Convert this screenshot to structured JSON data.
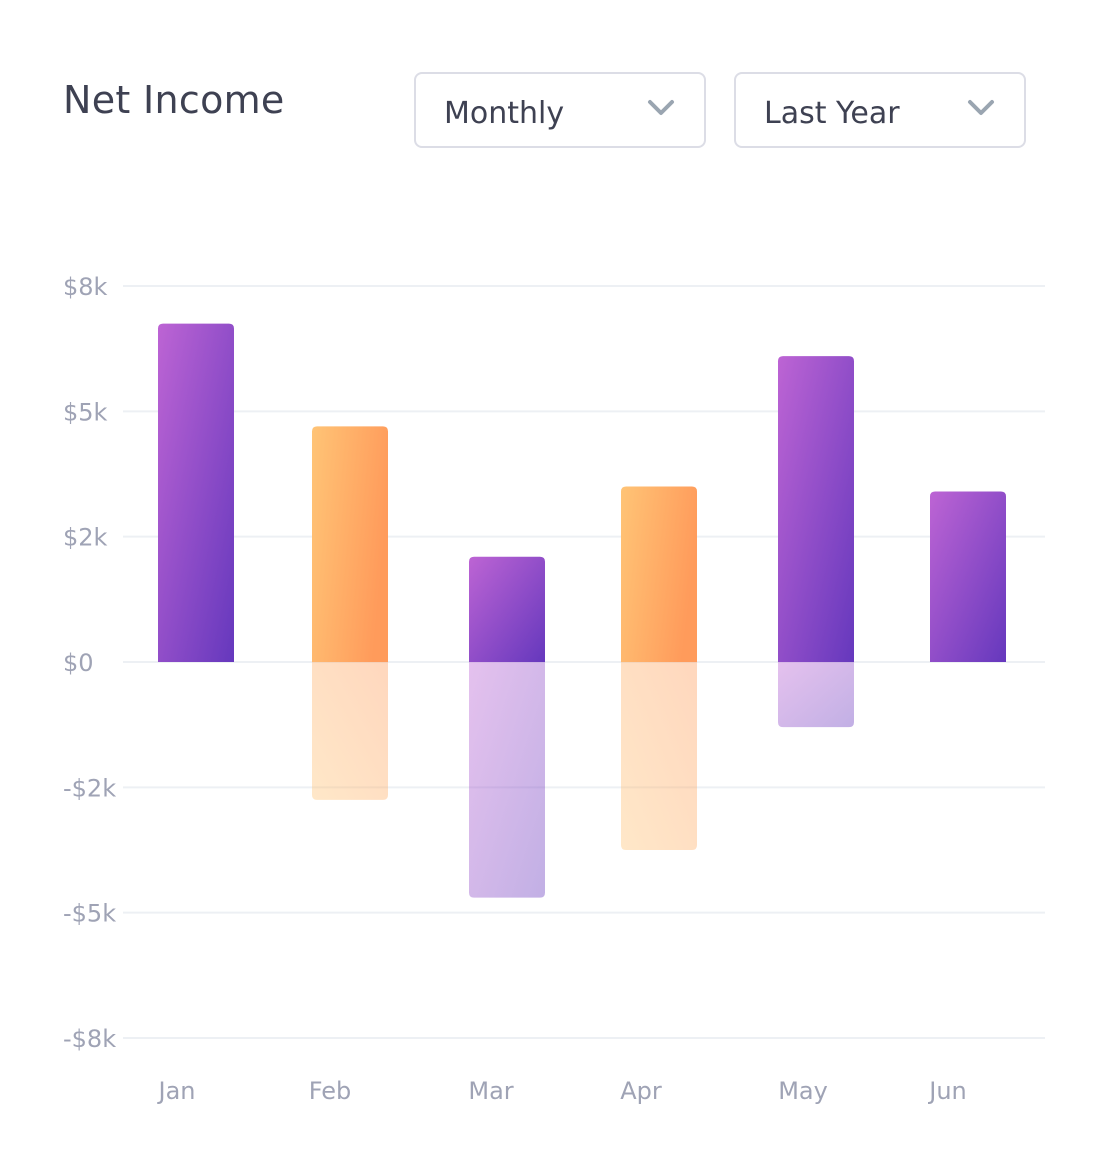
{
  "header": {
    "title": "Net Income",
    "period_select": {
      "value": "Monthly",
      "icon": "chevron-down-icon"
    },
    "range_select": {
      "value": "Last Year",
      "icon": "chevron-down-icon"
    }
  },
  "colors": {
    "purple_start": "#bd64d4",
    "purple_end": "#6538bd",
    "orange_start": "#ffc476",
    "orange_end": "#ff9b5b",
    "grid": "#edf0f4",
    "tick_text": "#9fa3b5"
  },
  "chart_data": {
    "type": "bar",
    "categories": [
      "Jan",
      "Feb",
      "Mar",
      "Apr",
      "May",
      "Jun"
    ],
    "series": [
      {
        "values": [
          6750,
          4700,
          2100,
          3500,
          6100,
          3400
        ]
      },
      {
        "values": [
          0,
          -2750,
          -4700,
          -3750,
          -1300,
          0
        ]
      }
    ],
    "bar_colors": [
      "purple",
      "orange",
      "purple",
      "orange",
      "purple",
      "purple"
    ],
    "negative_opacity": 0.4,
    "ylim": [
      -7500,
      7500
    ],
    "yticks": [
      7500,
      5000,
      2500,
      0,
      -2500,
      -5000,
      -7500
    ],
    "ytick_labels": [
      "$8k",
      "$5k",
      "$2k",
      "$0",
      "-$2k",
      "-$5k",
      "-$8k"
    ],
    "grid": true,
    "title": "",
    "xlabel": "",
    "ylabel": ""
  }
}
